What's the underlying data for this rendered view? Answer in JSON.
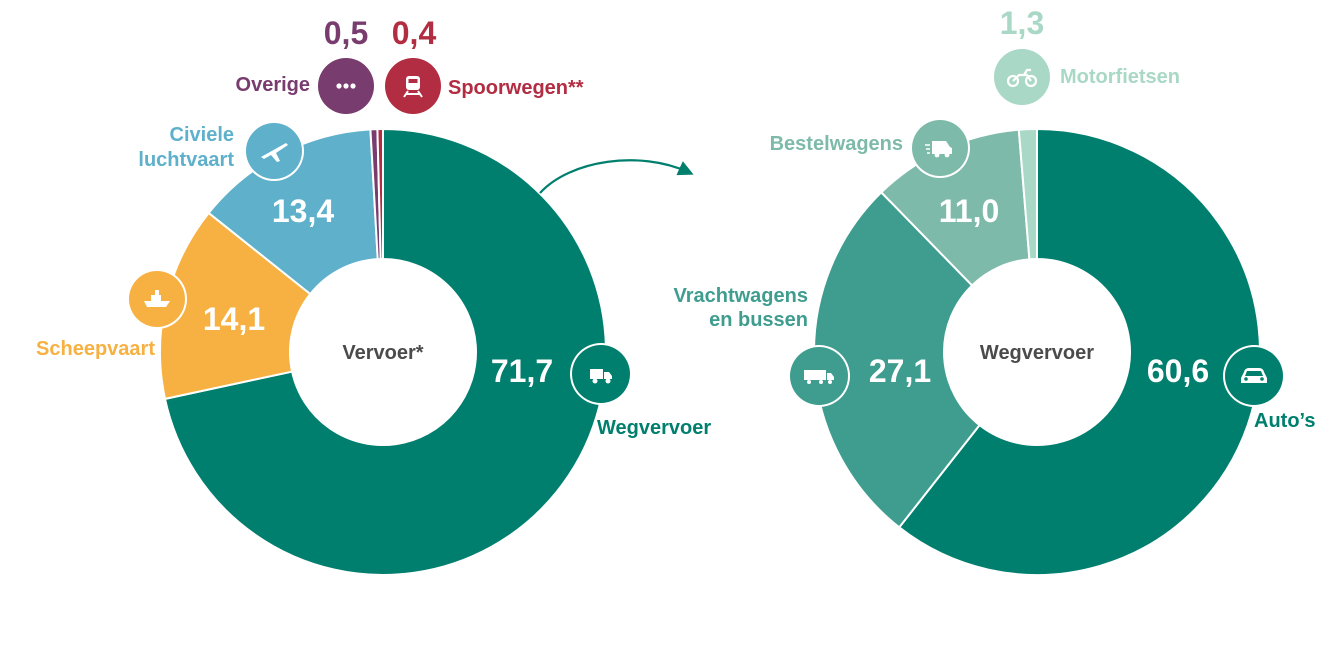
{
  "chart_data": [
    {
      "type": "pie",
      "center_label": "Vervoer*",
      "slices": [
        {
          "label": "Wegvervoer",
          "value": 71.7,
          "value_text": "71,7",
          "color": "#007f6e",
          "icon": "truck-icon"
        },
        {
          "label": "Scheepvaart",
          "value": 14.1,
          "value_text": "14,1",
          "color": "#f7b142",
          "icon": "ship-icon"
        },
        {
          "label": "Civiele luchtvaart",
          "label_lines": [
            "Civiele",
            "luchtvaart"
          ],
          "value": 13.4,
          "value_text": "13,4",
          "color": "#5eb0cb",
          "icon": "airplane-icon"
        },
        {
          "label": "Overige",
          "value": 0.5,
          "value_text": "0,5",
          "color": "#783c6e",
          "icon": "more-icon"
        },
        {
          "label": "Spoorwegen**",
          "value": 0.4,
          "value_text": "0,4",
          "color": "#b22d42",
          "icon": "train-icon"
        }
      ]
    },
    {
      "type": "pie",
      "center_label": "Wegvervoer",
      "slices": [
        {
          "label": "Auto’s",
          "value": 60.6,
          "value_text": "60,6",
          "color": "#007f6e",
          "icon": "car-icon"
        },
        {
          "label": "Vrachtwagens en bussen",
          "label_lines": [
            "Vrachtwagens",
            "en bussen"
          ],
          "value": 27.1,
          "value_text": "27,1",
          "color": "#3f9d8f",
          "icon": "lorry-icon"
        },
        {
          "label": "Bestelwagens",
          "value": 11.0,
          "value_text": "11,0",
          "color": "#7ebaa9",
          "icon": "van-icon"
        },
        {
          "label": "Motorfietsen",
          "value": 1.3,
          "value_text": "1,3",
          "color": "#a9d8c6",
          "icon": "motorcycle-icon"
        }
      ]
    }
  ]
}
